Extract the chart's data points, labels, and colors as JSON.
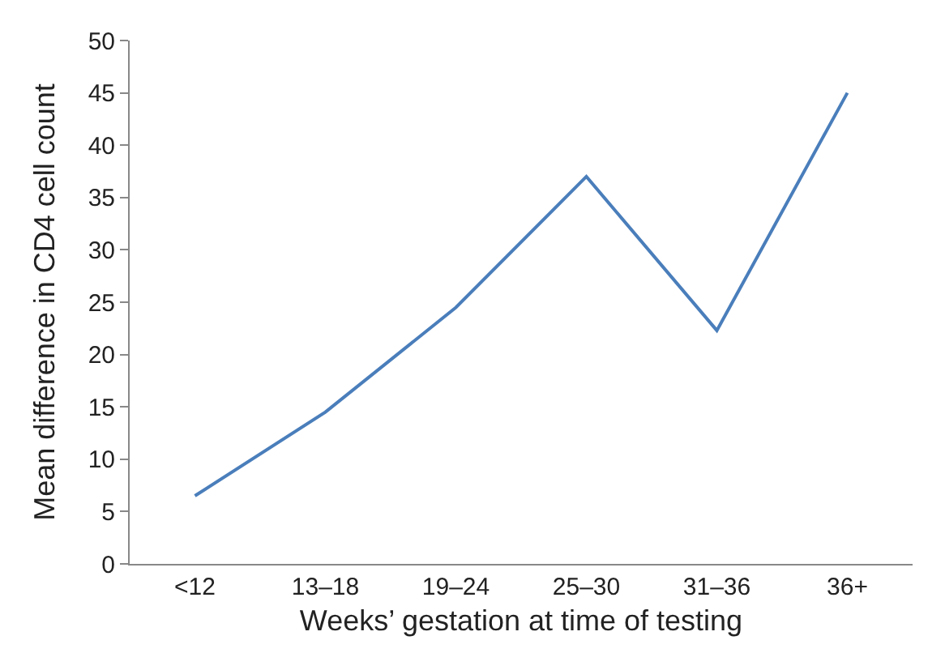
{
  "chart_data": {
    "type": "line",
    "xlabel": "Weeks’ gestation at time of testing",
    "ylabel": "Mean difference in CD4 cell count",
    "categories": [
      "<12",
      "13–18",
      "19–24",
      "25–30",
      "31–36",
      "36+"
    ],
    "series": [
      {
        "color": "#4a7ebb",
        "values": [
          6.5,
          14.5,
          24.5,
          37,
          22.3,
          45
        ]
      }
    ],
    "ylim": [
      0,
      50
    ],
    "yticks": [
      0,
      5,
      10,
      15,
      20,
      25,
      30,
      35,
      40,
      45,
      50
    ],
    "legend": false,
    "marker": "none",
    "line_style": "solid"
  }
}
